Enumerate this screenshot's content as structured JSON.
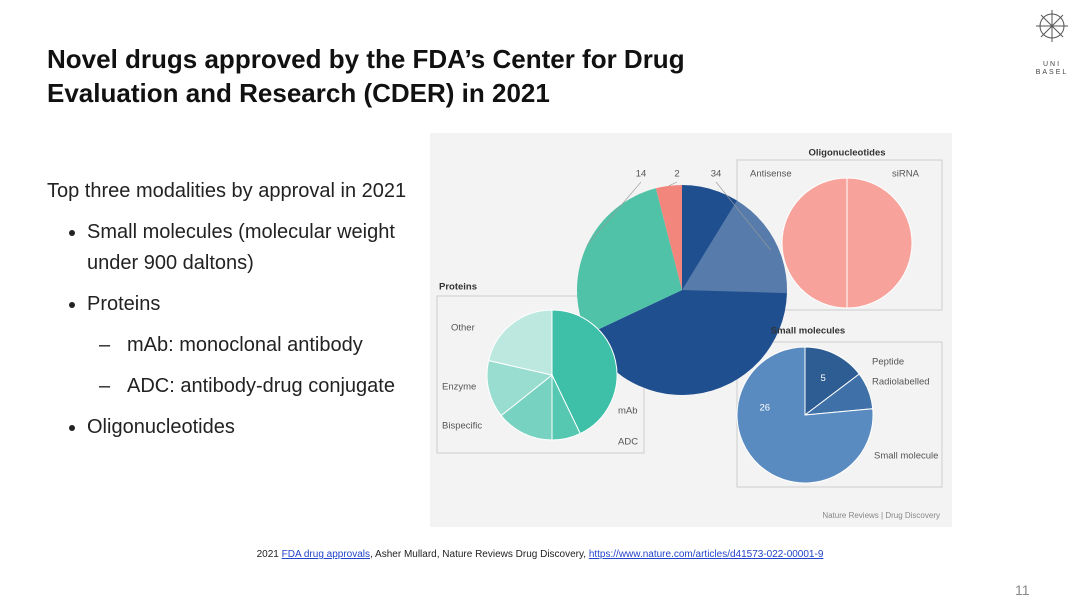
{
  "header": {
    "title": "Novel drugs approved by the FDA’s Center for Drug Evaluation and Research (CDER) in 2021",
    "logo": [
      "UNI",
      "BASEL"
    ]
  },
  "body": {
    "intro": "Top three modalities by approval in 2021",
    "bullets": [
      {
        "text": "Small molecules (molecular weight under 900 daltons)"
      },
      {
        "text": "Proteins",
        "sub": [
          "mAb: monoclonal antibody",
          "ADC: antibody-drug conjugate"
        ]
      },
      {
        "text": "Oligonucleotides"
      }
    ]
  },
  "figure": {
    "main_pie": {
      "slices": [
        {
          "value": 34,
          "color": "#1f4f8f"
        },
        {
          "value": 14,
          "color": "#4fc2a8"
        },
        {
          "value": 2,
          "color": "#f2857c"
        }
      ]
    },
    "panels": [
      {
        "title": "Oligonucleotides",
        "slices": [
          {
            "label": "siRNA",
            "value": 1,
            "color": "#f7a29b"
          },
          {
            "label": "Antisense",
            "value": 1,
            "color": "#f7a29b"
          }
        ]
      },
      {
        "title": "Proteins",
        "slices": [
          {
            "label": "mAb",
            "value": 6,
            "color": "#3dbfa8"
          },
          {
            "label": "ADC",
            "value": 1,
            "color": "#56c8b2"
          },
          {
            "label": "Bispecific",
            "value": 2,
            "color": "#78d2c1"
          },
          {
            "label": "Enzyme",
            "value": 2,
            "color": "#99ddd0"
          },
          {
            "label": "Other",
            "value": 3,
            "color": "#bce8df"
          }
        ]
      },
      {
        "title": "Small molecules",
        "slices": [
          {
            "label": "Peptide",
            "value": 5,
            "color": "#2d5d92"
          },
          {
            "label": "Radiolabelled",
            "value": 3,
            "color": "#3f71a8"
          },
          {
            "label": "Small molecule",
            "value": 26,
            "color": "#5a8bc0"
          }
        ]
      }
    ],
    "credit": "Nature Reviews | Drug Discovery"
  },
  "footer": {
    "prefix": "2021 ",
    "link": "FDA drug approvals",
    "middle": ", Asher Mullard, Nature Reviews Drug Discovery, ",
    "url": "https://www.nature.com/articles/d41573-022-00001-9",
    "page": "11"
  }
}
